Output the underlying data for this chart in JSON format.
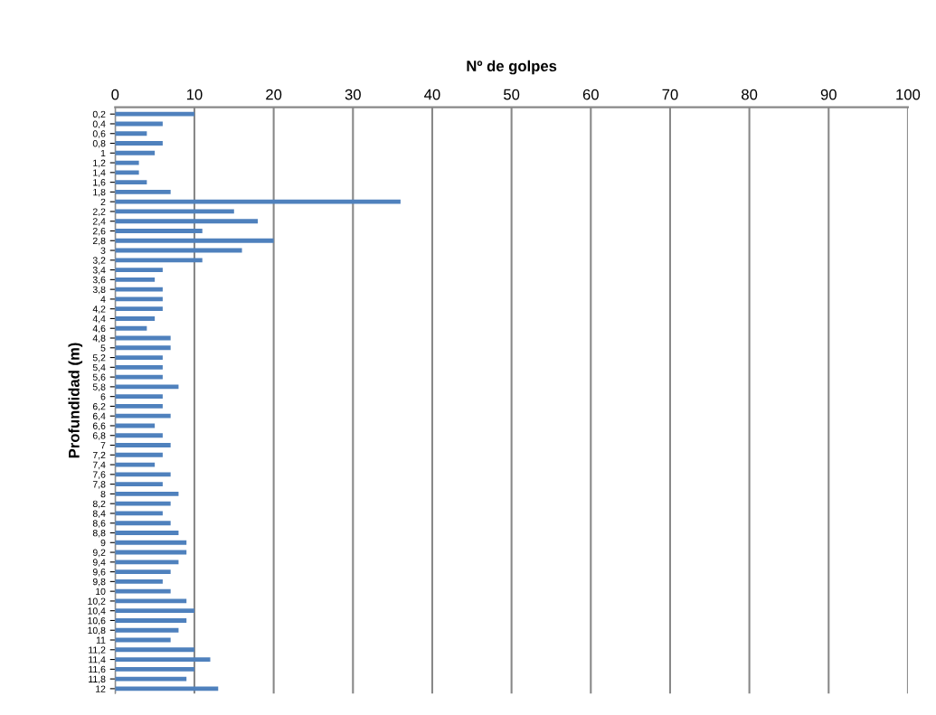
{
  "chart_data": {
    "type": "bar",
    "orientation": "horizontal",
    "xlabel": "Nº de golpes",
    "ylabel": "Profundidad (m)",
    "categories": [
      "0,2",
      "0,4",
      "0,6",
      "0,8",
      "1",
      "1,2",
      "1,4",
      "1,6",
      "1,8",
      "2",
      "2,2",
      "2,4",
      "2,6",
      "2,8",
      "3",
      "3,2",
      "3,4",
      "3,6",
      "3,8",
      "4",
      "4,2",
      "4,4",
      "4,6",
      "4,8",
      "5",
      "5,2",
      "5,4",
      "5,6",
      "5,8",
      "6",
      "6,2",
      "6,4",
      "6,6",
      "6,8",
      "7",
      "7,2",
      "7,4",
      "7,6",
      "7,8",
      "8",
      "8,2",
      "8,4",
      "8,6",
      "8,8",
      "9",
      "9,2",
      "9,4",
      "9,6",
      "9,8",
      "10",
      "10,2",
      "10,4",
      "10,6",
      "10,8",
      "11",
      "11,2",
      "11,4",
      "11,6",
      "11,8",
      "12"
    ],
    "values": [
      10,
      6,
      4,
      6,
      5,
      3,
      3,
      4,
      7,
      36,
      15,
      18,
      11,
      20,
      16,
      11,
      6,
      5,
      6,
      6,
      6,
      5,
      4,
      7,
      7,
      6,
      6,
      6,
      8,
      6,
      6,
      7,
      5,
      6,
      7,
      6,
      5,
      7,
      6,
      8,
      7,
      6,
      7,
      8,
      9,
      9,
      8,
      7,
      6,
      7,
      9,
      10,
      9,
      8,
      7,
      10,
      12,
      10,
      9,
      13
    ],
    "color": "#4f81bd",
    "xlim": [
      0,
      100
    ],
    "xticks": [
      0,
      10,
      20,
      30,
      40,
      50,
      60,
      70,
      80,
      90,
      100
    ],
    "grid": "x"
  }
}
